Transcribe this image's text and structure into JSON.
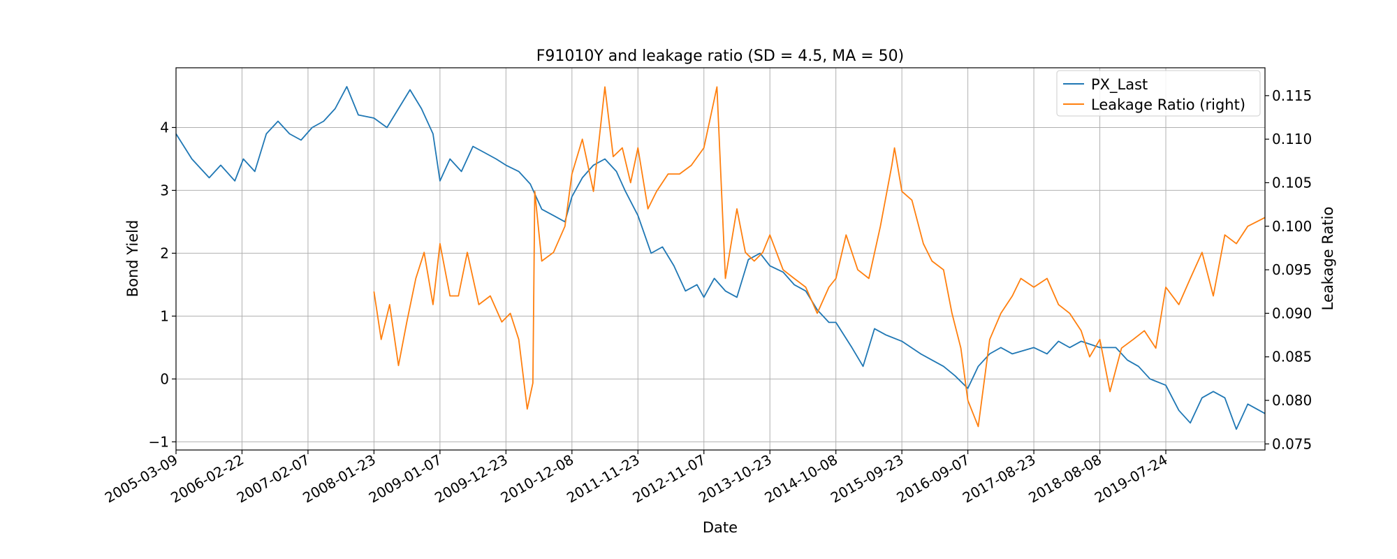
{
  "chart_data": {
    "type": "line",
    "title": "F91010Y and leakage ratio (SD = 4.5, MA = 50)",
    "xlabel": "Date",
    "ylabel": "Bond Yield",
    "ylabel_right": "Leakage Ratio",
    "grid": true,
    "legend_position": "top-right",
    "x_ticks": [
      "2005-03-09",
      "2006-02-22",
      "2007-02-07",
      "2008-01-23",
      "2009-01-07",
      "2009-12-23",
      "2010-12-08",
      "2011-11-23",
      "2012-11-07",
      "2013-10-23",
      "2014-10-08",
      "2015-09-23",
      "2016-09-07",
      "2017-08-23",
      "2018-08-08",
      "2019-07-24"
    ],
    "x_range": [
      "2005-03-09",
      "2020-12-31"
    ],
    "y_ticks_left": [
      "−1",
      "0",
      "1",
      "2",
      "3",
      "4"
    ],
    "ylim_left": [
      -1.13,
      4.95
    ],
    "y_ticks_right": [
      "0.075",
      "0.080",
      "0.085",
      "0.090",
      "0.095",
      "0.100",
      "0.105",
      "0.110",
      "0.115"
    ],
    "ylim_right": [
      0.0743,
      0.1182
    ],
    "series": [
      {
        "name": "PX_Last",
        "axis": "left",
        "color": "#1f77b4",
        "x": [
          "2005-03-09",
          "2005-06-01",
          "2005-09-01",
          "2005-11-01",
          "2006-01-15",
          "2006-03-01",
          "2006-05-01",
          "2006-07-01",
          "2006-09-01",
          "2006-11-01",
          "2007-01-01",
          "2007-03-01",
          "2007-05-01",
          "2007-07-01",
          "2007-09-01",
          "2007-11-01",
          "2008-01-23",
          "2008-04-01",
          "2008-06-01",
          "2008-08-01",
          "2008-10-01",
          "2008-12-01",
          "2009-01-07",
          "2009-03-01",
          "2009-05-01",
          "2009-07-01",
          "2009-09-01",
          "2009-11-01",
          "2009-12-23",
          "2010-03-01",
          "2010-05-01",
          "2010-07-01",
          "2010-09-01",
          "2010-11-01",
          "2010-12-08",
          "2011-02-01",
          "2011-04-01",
          "2011-06-01",
          "2011-08-01",
          "2011-09-15",
          "2011-11-23",
          "2012-02-01",
          "2012-04-01",
          "2012-06-01",
          "2012-08-01",
          "2012-10-01",
          "2012-11-07",
          "2013-01-01",
          "2013-03-01",
          "2013-05-01",
          "2013-07-01",
          "2013-09-01",
          "2013-10-23",
          "2014-01-01",
          "2014-03-01",
          "2014-05-01",
          "2014-07-01",
          "2014-09-01",
          "2014-10-08",
          "2015-01-01",
          "2015-03-01",
          "2015-05-01",
          "2015-07-01",
          "2015-09-23",
          "2016-01-01",
          "2016-03-01",
          "2016-05-01",
          "2016-07-01",
          "2016-09-07",
          "2016-11-01",
          "2017-01-01",
          "2017-03-01",
          "2017-05-01",
          "2017-08-23",
          "2017-11-01",
          "2018-01-01",
          "2018-03-01",
          "2018-05-01",
          "2018-08-08",
          "2018-11-01",
          "2019-01-01",
          "2019-03-01",
          "2019-05-01",
          "2019-07-24",
          "2019-10-01",
          "2019-12-01",
          "2020-02-01",
          "2020-04-01",
          "2020-06-01",
          "2020-08-01",
          "2020-10-01",
          "2020-12-31"
        ],
        "y": [
          3.9,
          3.5,
          3.2,
          3.4,
          3.15,
          3.5,
          3.3,
          3.9,
          4.1,
          3.9,
          3.8,
          4.0,
          4.1,
          4.3,
          4.65,
          4.2,
          4.15,
          4.0,
          4.3,
          4.6,
          4.3,
          3.9,
          3.15,
          3.5,
          3.3,
          3.7,
          3.6,
          3.5,
          3.4,
          3.3,
          3.1,
          2.7,
          2.6,
          2.5,
          2.9,
          3.2,
          3.4,
          3.5,
          3.3,
          3.0,
          2.6,
          2.0,
          2.1,
          1.8,
          1.4,
          1.5,
          1.3,
          1.6,
          1.4,
          1.3,
          1.9,
          2.0,
          1.8,
          1.7,
          1.5,
          1.4,
          1.1,
          0.9,
          0.9,
          0.5,
          0.2,
          0.8,
          0.7,
          0.6,
          0.4,
          0.3,
          0.2,
          0.05,
          -0.15,
          0.2,
          0.4,
          0.5,
          0.4,
          0.5,
          0.4,
          0.6,
          0.5,
          0.6,
          0.5,
          0.5,
          0.3,
          0.2,
          0.0,
          -0.1,
          -0.5,
          -0.7,
          -0.3,
          -0.2,
          -0.3,
          -0.8,
          -0.4,
          -0.55
        ]
      },
      {
        "name": "Leakage Ratio (right)",
        "axis": "right",
        "color": "#ff7f0e",
        "x": [
          "2008-01-23",
          "2008-03-01",
          "2008-04-15",
          "2008-06-01",
          "2008-07-15",
          "2008-09-01",
          "2008-10-15",
          "2008-12-01",
          "2009-01-07",
          "2009-03-01",
          "2009-04-15",
          "2009-06-01",
          "2009-08-01",
          "2009-10-01",
          "2009-12-01",
          "2010-01-15",
          "2010-03-01",
          "2010-04-15",
          "2010-05-15",
          "2010-05-25",
          "2010-07-01",
          "2010-09-01",
          "2010-11-01",
          "2010-12-08",
          "2011-02-01",
          "2011-04-01",
          "2011-06-01",
          "2011-07-15",
          "2011-09-01",
          "2011-10-15",
          "2011-11-23",
          "2012-01-15",
          "2012-03-01",
          "2012-05-01",
          "2012-07-01",
          "2012-09-01",
          "2012-11-07",
          "2013-01-15",
          "2013-03-01",
          "2013-05-01",
          "2013-06-15",
          "2013-08-01",
          "2013-09-15",
          "2013-10-23",
          "2014-01-01",
          "2014-03-01",
          "2014-05-01",
          "2014-07-01",
          "2014-09-01",
          "2014-10-08",
          "2014-12-01",
          "2015-02-01",
          "2015-04-01",
          "2015-06-01",
          "2015-08-01",
          "2015-08-15",
          "2015-09-23",
          "2015-11-15",
          "2016-01-15",
          "2016-03-01",
          "2016-05-01",
          "2016-06-15",
          "2016-08-01",
          "2016-09-07",
          "2016-11-01",
          "2017-01-01",
          "2017-03-01",
          "2017-05-01",
          "2017-06-15",
          "2017-08-23",
          "2017-11-01",
          "2018-01-01",
          "2018-03-01",
          "2018-05-01",
          "2018-06-15",
          "2018-08-08",
          "2018-10-01",
          "2018-12-01",
          "2019-02-01",
          "2019-04-01",
          "2019-06-01",
          "2019-07-24",
          "2019-10-01",
          "2019-12-01",
          "2020-02-01",
          "2020-04-01",
          "2020-06-01",
          "2020-08-01",
          "2020-10-01",
          "2020-12-31"
        ],
        "y": [
          0.0925,
          0.087,
          0.091,
          0.084,
          0.089,
          0.094,
          0.097,
          0.091,
          0.098,
          0.092,
          0.092,
          0.097,
          0.091,
          0.092,
          0.089,
          0.09,
          0.087,
          0.079,
          0.082,
          0.104,
          0.096,
          0.097,
          0.1,
          0.106,
          0.11,
          0.104,
          0.116,
          0.108,
          0.109,
          0.105,
          0.109,
          0.102,
          0.104,
          0.106,
          0.106,
          0.107,
          0.109,
          0.116,
          0.094,
          0.102,
          0.097,
          0.096,
          0.097,
          0.099,
          0.095,
          0.094,
          0.093,
          0.09,
          0.093,
          0.094,
          0.099,
          0.095,
          0.094,
          0.1,
          0.107,
          0.109,
          0.104,
          0.103,
          0.098,
          0.096,
          0.095,
          0.09,
          0.086,
          0.08,
          0.077,
          0.087,
          0.09,
          0.092,
          0.094,
          0.093,
          0.094,
          0.091,
          0.09,
          0.088,
          0.085,
          0.087,
          0.081,
          0.086,
          0.087,
          0.088,
          0.086,
          0.093,
          0.091,
          0.094,
          0.097,
          0.092,
          0.099,
          0.098,
          0.1,
          0.101
        ]
      }
    ]
  }
}
